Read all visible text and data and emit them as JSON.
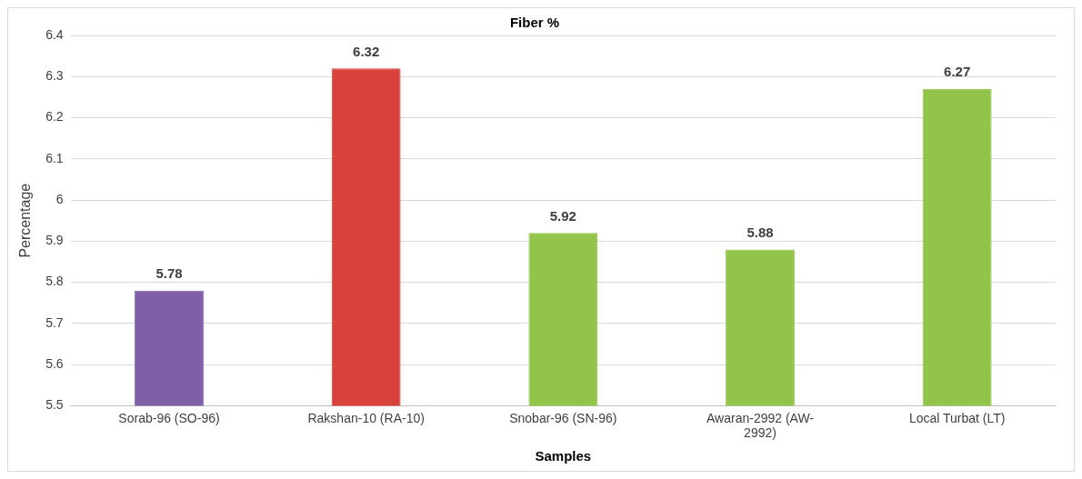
{
  "chart_data": {
    "type": "bar",
    "title": "Fiber %",
    "xlabel": "Samples",
    "ylabel": "Percentage",
    "categories": [
      "Sorab-96 (SO-96)",
      "Rakshan-10 (RA-10)",
      "Snobar-96 (SN-96)",
      "Awaran-2992 (AW-2992)",
      "Local Turbat (LT)"
    ],
    "values": [
      5.78,
      6.32,
      5.92,
      5.88,
      6.27
    ],
    "colors": [
      "#7f5fa8",
      "#d9413b",
      "#92c44a",
      "#92c44a",
      "#92c44a"
    ],
    "ylim": [
      5.5,
      6.4
    ],
    "yticks": [
      5.5,
      5.6,
      5.7,
      5.8,
      5.9,
      6,
      6.1,
      6.2,
      6.3,
      6.4
    ],
    "grid": "y",
    "legend": false,
    "data_labels": true
  }
}
